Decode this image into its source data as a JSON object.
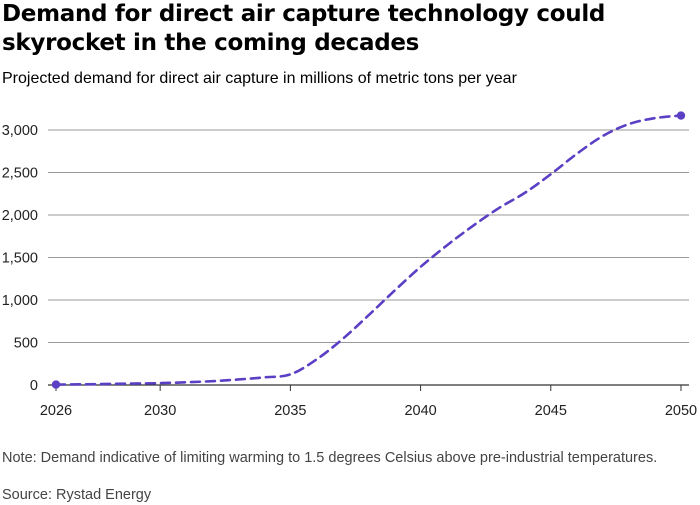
{
  "header": {
    "title": "Demand for direct air capture technology could skyrocket in the coming decades",
    "subtitle": "Projected demand for direct air capture in millions of metric tons per year"
  },
  "footer": {
    "note": "Note: Demand indicative of limiting warming to 1.5 degrees Celsius above pre-industrial temperatures.",
    "source": "Source: Rystad Energy"
  },
  "chart_data": {
    "type": "line",
    "title": "Demand for direct air capture technology could skyrocket in the coming decades",
    "subtitle": "Projected demand for direct air capture in millions of metric tons per year",
    "xlabel": "",
    "ylabel": "",
    "xlim": [
      2026,
      2050
    ],
    "ylim": [
      0,
      3200
    ],
    "x_ticks": [
      2026,
      2030,
      2035,
      2040,
      2045,
      2050
    ],
    "y_ticks": [
      0,
      500,
      1000,
      1500,
      2000,
      2500,
      3000
    ],
    "y_tick_labels": [
      "0",
      "500",
      "1,000",
      "1,500",
      "2,000",
      "2,500",
      "3,000"
    ],
    "grid": "horizontal",
    "series": [
      {
        "line_style": "dashed",
        "color": "#5b3fc4",
        "x": [
          2026,
          2027,
          2028,
          2029,
          2030,
          2031,
          2032,
          2033,
          2034,
          2035,
          2036,
          2037,
          2038,
          2039,
          2040,
          2041,
          2042,
          2043,
          2044,
          2045,
          2046,
          2047,
          2048,
          2049,
          2050
        ],
        "values": [
          5,
          8,
          12,
          17,
          22,
          32,
          45,
          65,
          90,
          125,
          300,
          540,
          820,
          1110,
          1390,
          1640,
          1870,
          2080,
          2260,
          2480,
          2720,
          2930,
          3070,
          3140,
          3170
        ]
      }
    ],
    "endpoint_markers": true
  }
}
